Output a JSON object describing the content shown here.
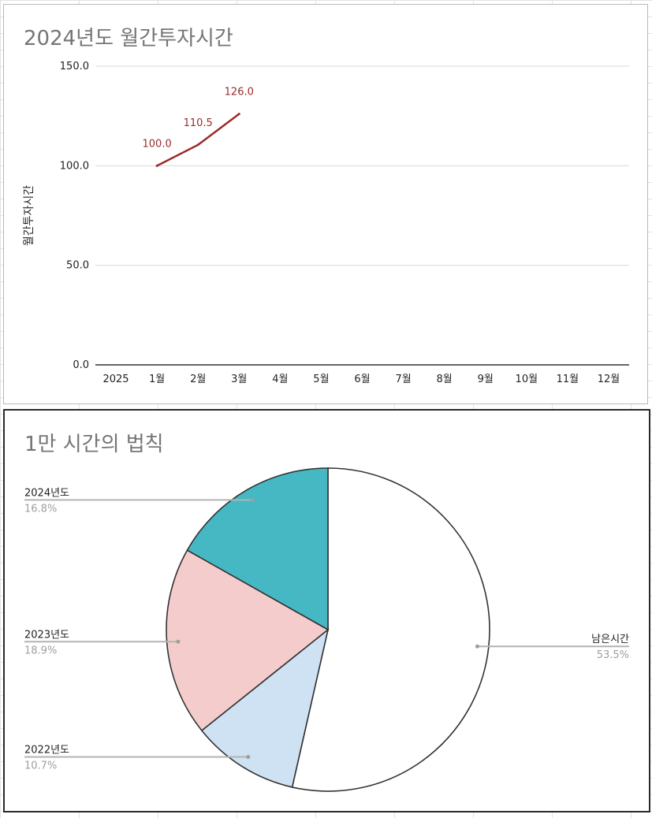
{
  "chart_data": [
    {
      "type": "line",
      "title": "2024년도 월간투자시간",
      "ylabel": "월간투자시간",
      "xlabel": "",
      "categories": [
        "2025",
        "1월",
        "2월",
        "3월",
        "4월",
        "5월",
        "6월",
        "7월",
        "8월",
        "9월",
        "10월",
        "11월",
        "12월"
      ],
      "yticks": [
        "0.0",
        "50.0",
        "100.0",
        "150.0"
      ],
      "ylim": [
        0,
        150
      ],
      "grid": true,
      "legend": "none",
      "series": [
        {
          "points": [
            {
              "x": "1월",
              "y": 100.0,
              "label": "100.0"
            },
            {
              "x": "2월",
              "y": 110.5,
              "label": "110.5"
            },
            {
              "x": "3월",
              "y": 126.0,
              "label": "126.0"
            }
          ],
          "color": "#9b2a2a"
        }
      ]
    },
    {
      "type": "pie",
      "title": "1만 시간의 법칙",
      "slices": [
        {
          "label": "남은시간",
          "value": 53.5,
          "pct": "53.5%",
          "color": "#ffffff"
        },
        {
          "label": "2022년도",
          "value": 10.7,
          "pct": "10.7%",
          "color": "#cfe2f3"
        },
        {
          "label": "2023년도",
          "value": 18.9,
          "pct": "18.9%",
          "color": "#f4cccc"
        },
        {
          "label": "2024년도",
          "value": 16.8,
          "pct": "16.8%",
          "color": "#45b8c4"
        }
      ],
      "legend": "labels with leader lines"
    }
  ]
}
